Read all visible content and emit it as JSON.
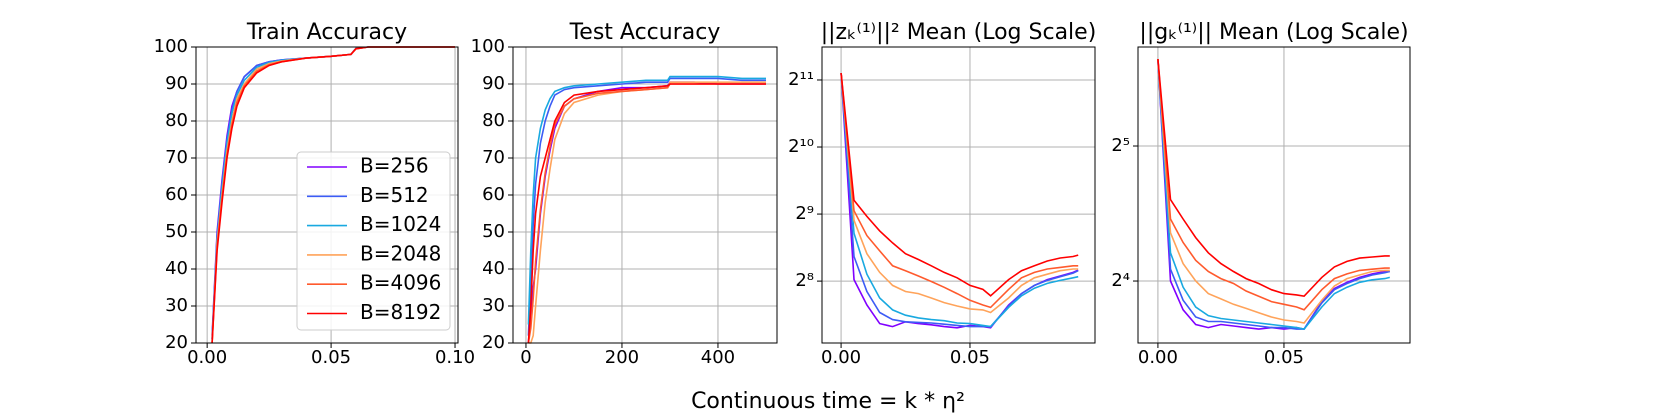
{
  "xlabel": "Continuous time = k * η²",
  "chart_data": [
    {
      "type": "line",
      "title": "Train Accuracy",
      "grid": true,
      "legend": "lower right",
      "x": [
        0.002,
        0.004,
        0.006,
        0.008,
        0.01,
        0.012,
        0.015,
        0.02,
        0.025,
        0.03,
        0.04,
        0.05,
        0.058,
        0.06,
        0.065,
        0.07,
        0.08,
        0.09,
        0.1
      ],
      "xlim": [
        -0.0045,
        0.1012
      ],
      "xticks": [
        {
          "value": 0,
          "label": "0.00"
        },
        {
          "value": 0.05,
          "label": "0.05"
        },
        {
          "value": 0.1,
          "label": "0.10"
        }
      ],
      "ylim": [
        20,
        100
      ],
      "yticks": [
        20,
        30,
        40,
        50,
        60,
        70,
        80,
        90,
        100
      ],
      "series": [
        {
          "name": "B=256",
          "color": "#8000ff",
          "values": [
            22,
            50,
            64,
            76,
            84,
            88,
            92,
            95,
            96,
            96.5,
            97,
            97.5,
            98,
            99.6,
            100,
            100,
            100,
            100,
            100
          ]
        },
        {
          "name": "B=512",
          "color": "#3c5cf5",
          "values": [
            21,
            49,
            63,
            75,
            83,
            88,
            92,
            95,
            96,
            96.5,
            97,
            97.5,
            98,
            99.6,
            100,
            100,
            100,
            100,
            100
          ]
        },
        {
          "name": "B=1024",
          "color": "#19a9e0",
          "values": [
            21,
            48,
            62,
            74,
            82,
            87,
            91,
            94.5,
            95.8,
            96.4,
            97,
            97.5,
            98,
            99.6,
            100,
            100,
            100,
            100,
            100
          ]
        },
        {
          "name": "B=2048",
          "color": "#ffa35a",
          "values": [
            20,
            47,
            60,
            72,
            80,
            86,
            90,
            94,
            95.5,
            96.2,
            97,
            97.5,
            98,
            99.5,
            100,
            100,
            100,
            100,
            100
          ]
        },
        {
          "name": "B=4096",
          "color": "#ff5a2d",
          "values": [
            20,
            46,
            59,
            71,
            79,
            85,
            89.5,
            93.5,
            95.2,
            96,
            97,
            97.5,
            98,
            99.5,
            100,
            100,
            100,
            100,
            100
          ]
        },
        {
          "name": "B=8192",
          "color": "#ff0000",
          "values": [
            20,
            45,
            58,
            70,
            78,
            84,
            89,
            93,
            95,
            96,
            97,
            97.5,
            98,
            99.5,
            100,
            100,
            100,
            100,
            100
          ]
        }
      ]
    },
    {
      "type": "line",
      "title": "Test Accuracy",
      "grid": true,
      "x": [
        5,
        10,
        15,
        20,
        30,
        40,
        50,
        60,
        80,
        100,
        150,
        200,
        250,
        295,
        300,
        350,
        400,
        450,
        500
      ],
      "xlim": [
        -27,
        523
      ],
      "xticks": [
        0,
        200,
        400
      ],
      "ylim": [
        20,
        100
      ],
      "yticks": [
        20,
        30,
        40,
        50,
        60,
        70,
        80,
        90,
        100
      ],
      "series": [
        {
          "color": "#8000ff",
          "values": [
            20,
            28,
            35,
            40,
            55,
            65,
            72,
            78,
            84,
            86,
            88,
            89,
            89,
            89.5,
            90.5,
            90.5,
            90,
            90,
            90
          ]
        },
        {
          "color": "#3c5cf5",
          "values": [
            22,
            38,
            52,
            63,
            74,
            80,
            84,
            87,
            88.5,
            89,
            89.5,
            90,
            90.5,
            90.5,
            91.5,
            91.5,
            91.5,
            91,
            91
          ]
        },
        {
          "color": "#19a9e0",
          "values": [
            25,
            45,
            60,
            70,
            78,
            83,
            86,
            88,
            89,
            89.5,
            90,
            90.5,
            91,
            91,
            92,
            92,
            92,
            91.5,
            91.5
          ]
        },
        {
          "color": "#ffa35a",
          "values": [
            20,
            20,
            22,
            30,
            45,
            58,
            67,
            75,
            82,
            85,
            87,
            88,
            88.5,
            89,
            90.5,
            90.5,
            90.5,
            90.5,
            90.5
          ]
        },
        {
          "color": "#ff5a2d",
          "values": [
            20,
            24,
            32,
            42,
            56,
            66,
            73,
            79,
            84,
            86,
            87.5,
            88,
            88.5,
            89,
            90,
            90,
            90,
            90,
            90
          ]
        },
        {
          "color": "#ff0000",
          "values": [
            20,
            30,
            45,
            55,
            65,
            70,
            75,
            80,
            85,
            87,
            88,
            88.5,
            89,
            89.5,
            90,
            90,
            90,
            90,
            90
          ]
        }
      ]
    },
    {
      "type": "line",
      "title": "||zₖ⁽¹⁾||² Mean (Log Scale)",
      "grid": true,
      "log_y": true,
      "x": [
        0,
        0.005,
        0.01,
        0.015,
        0.02,
        0.025,
        0.03,
        0.035,
        0.04,
        0.045,
        0.05,
        0.055,
        0.058,
        0.065,
        0.07,
        0.075,
        0.08,
        0.085,
        0.09,
        0.092
      ],
      "xlim": [
        -0.0074,
        0.0985
      ],
      "xticks": [
        {
          "value": 0,
          "label": "0.00"
        },
        {
          "value": 0.05,
          "label": "0.05"
        }
      ],
      "ylim": [
        135,
        2880
      ],
      "yticks": [
        {
          "value": 256,
          "label": "2⁸"
        },
        {
          "value": 512,
          "label": "2⁹"
        },
        {
          "value": 1024,
          "label": "2¹⁰"
        },
        {
          "value": 2048,
          "label": "2¹¹"
        }
      ],
      "series": [
        {
          "color": "#8000ff",
          "values": [
            2200,
            260,
            200,
            165,
            160,
            168,
            165,
            163,
            160,
            158,
            162,
            160,
            158,
            200,
            225,
            245,
            260,
            270,
            280,
            287
          ]
        },
        {
          "color": "#3c5cf5",
          "values": [
            2200,
            330,
            230,
            185,
            172,
            168,
            167,
            166,
            164,
            162,
            160,
            160,
            160,
            198,
            225,
            245,
            258,
            268,
            278,
            285
          ]
        },
        {
          "color": "#19a9e0",
          "values": [
            2200,
            420,
            275,
            215,
            190,
            180,
            175,
            172,
            170,
            166,
            165,
            162,
            160,
            195,
            220,
            238,
            250,
            258,
            265,
            268
          ]
        },
        {
          "color": "#ffa35a",
          "values": [
            2200,
            480,
            340,
            280,
            245,
            230,
            225,
            215,
            205,
            198,
            192,
            190,
            185,
            215,
            245,
            265,
            275,
            285,
            290,
            290
          ]
        },
        {
          "color": "#ff5a2d",
          "values": [
            2200,
            530,
            410,
            350,
            300,
            285,
            270,
            255,
            240,
            225,
            210,
            200,
            195,
            235,
            265,
            280,
            290,
            295,
            300,
            300
          ]
        },
        {
          "color": "#ff0000",
          "values": [
            2200,
            590,
            500,
            430,
            380,
            340,
            320,
            300,
            280,
            265,
            245,
            235,
            220,
            260,
            285,
            300,
            315,
            325,
            330,
            335
          ]
        }
      ]
    },
    {
      "type": "line",
      "title": "||gₖ⁽¹⁾|| Mean (Log Scale)",
      "grid": true,
      "log_y": true,
      "x": [
        0,
        0.005,
        0.01,
        0.015,
        0.02,
        0.025,
        0.03,
        0.035,
        0.04,
        0.045,
        0.05,
        0.055,
        0.058,
        0.065,
        0.07,
        0.075,
        0.08,
        0.085,
        0.09,
        0.092
      ],
      "xlim": [
        -0.0079,
        0.1
      ],
      "xticks": [
        {
          "value": 0,
          "label": "0.00"
        },
        {
          "value": 0.05,
          "label": "0.05"
        }
      ],
      "ylim": [
        11.64,
        53.2
      ],
      "yticks": [
        {
          "value": 16,
          "label": "2⁴"
        },
        {
          "value": 32,
          "label": "2⁵"
        }
      ],
      "series": [
        {
          "color": "#8000ff",
          "values": [
            50,
            16,
            13.8,
            12.8,
            12.6,
            12.8,
            12.7,
            12.6,
            12.5,
            12.6,
            12.5,
            12.6,
            12.5,
            14.4,
            15.4,
            15.9,
            16.3,
            16.6,
            16.8,
            16.8
          ]
        },
        {
          "color": "#3c5cf5",
          "values": [
            50,
            17,
            14.5,
            13.3,
            13,
            13,
            12.9,
            12.8,
            12.7,
            12.6,
            12.6,
            12.5,
            12.5,
            14.3,
            15.3,
            15.8,
            16.2,
            16.5,
            16.7,
            16.8
          ]
        },
        {
          "color": "#19a9e0",
          "values": [
            50,
            18.5,
            15.5,
            14,
            13.4,
            13.2,
            13.1,
            13,
            12.9,
            12.8,
            12.7,
            12.6,
            12.5,
            14,
            15,
            15.5,
            15.9,
            16.1,
            16.2,
            16.3
          ]
        },
        {
          "color": "#ffa35a",
          "values": [
            50,
            20.5,
            17.5,
            16,
            15,
            14.6,
            14.2,
            13.9,
            13.6,
            13.3,
            13.1,
            13,
            12.9,
            14.5,
            15.6,
            16.2,
            16.5,
            16.8,
            16.9,
            16.9
          ]
        },
        {
          "color": "#ff5a2d",
          "values": [
            50,
            22,
            19.5,
            17.8,
            16.8,
            16.2,
            15.8,
            15.2,
            14.8,
            14.4,
            14.2,
            14,
            13.8,
            15.3,
            16.2,
            16.6,
            16.9,
            17,
            17.1,
            17.1
          ]
        },
        {
          "color": "#ff0000",
          "values": [
            50,
            24.3,
            22,
            20,
            18.5,
            17.5,
            16.8,
            16.2,
            15.8,
            15.3,
            15,
            14.9,
            14.8,
            16.3,
            17.2,
            17.7,
            18,
            18.1,
            18.2,
            18.2
          ]
        }
      ]
    }
  ]
}
